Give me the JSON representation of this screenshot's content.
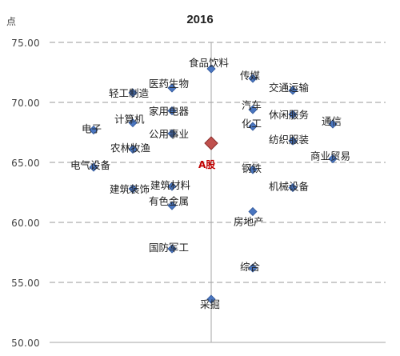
{
  "chart_data": {
    "type": "scatter",
    "title": "2016",
    "ylabel": "点",
    "ylim": [
      50,
      75
    ],
    "yticks": [
      "75.00",
      "70.00",
      "65.00",
      "60.00",
      "55.00",
      "50.00"
    ],
    "grid": "horizontal dashed",
    "reference_line": "vertical line through A股",
    "points": [
      {
        "label": "食品饮料",
        "value": 72.8
      },
      {
        "label": "传媒",
        "value": 72.0
      },
      {
        "label": "医药生物",
        "value": 71.2
      },
      {
        "label": "交通运输",
        "value": 71.0
      },
      {
        "label": "轻工制造",
        "value": 70.8
      },
      {
        "label": "汽车",
        "value": 69.4
      },
      {
        "label": "家用电器",
        "value": 69.3
      },
      {
        "label": "休闲服务",
        "value": 69.0
      },
      {
        "label": "计算机",
        "value": 68.3
      },
      {
        "label": "通信",
        "value": 68.2
      },
      {
        "label": "化工",
        "value": 68.0
      },
      {
        "label": "电子",
        "value": 67.7
      },
      {
        "label": "公用事业",
        "value": 67.4
      },
      {
        "label": "纺织服装",
        "value": 66.8
      },
      {
        "label": "A股",
        "value": 66.6,
        "highlight": true
      },
      {
        "label": "农林牧渔",
        "value": 66.1
      },
      {
        "label": "商业贸易",
        "value": 65.3
      },
      {
        "label": "电气设备",
        "value": 64.6
      },
      {
        "label": "钢铁",
        "value": 64.4
      },
      {
        "label": "建筑材料",
        "value": 63.0
      },
      {
        "label": "机械设备",
        "value": 62.9
      },
      {
        "label": "建筑装饰",
        "value": 62.8
      },
      {
        "label": "有色金属",
        "value": 61.4
      },
      {
        "label": "房地产",
        "value": 60.9
      },
      {
        "label": "国防军工",
        "value": 57.8
      },
      {
        "label": "综合",
        "value": 56.2
      },
      {
        "label": "采掘",
        "value": 53.6
      }
    ]
  },
  "colors": {
    "point": "#4a76c0",
    "point_edge": "#2f5597",
    "highlight": "#c0504d",
    "highlight_edge": "#8b2f2d",
    "highlight_label": "#c00000",
    "grid": "#9a9a9a",
    "axis": "#a6a6a6",
    "text": "#222222"
  }
}
